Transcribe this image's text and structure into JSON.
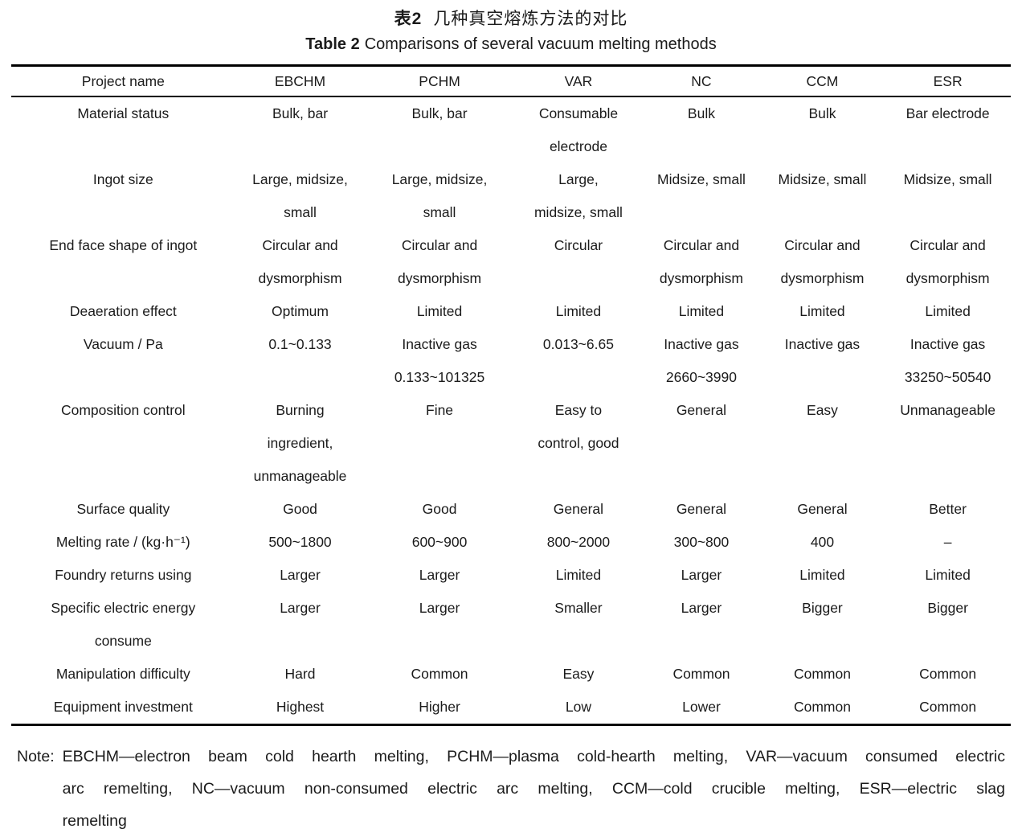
{
  "title": {
    "zh_label": "表2",
    "zh_text": "几种真空熔炼方法的对比",
    "en_label": "Table 2",
    "en_text": "Comparisons of several vacuum melting methods"
  },
  "table": {
    "columns": [
      "Project name",
      "EBCHM",
      "PCHM",
      "VAR",
      "NC",
      "CCM",
      "ESR"
    ],
    "rows": [
      {
        "label": "Material status",
        "cells": [
          "Bulk, bar",
          "Bulk, bar",
          "Consumable\nelectrode",
          "Bulk",
          "Bulk",
          "Bar electrode"
        ]
      },
      {
        "label": "Ingot size",
        "cells": [
          "Large, midsize,\nsmall",
          "Large, midsize,\nsmall",
          "Large,\nmidsize, small",
          "Midsize, small",
          "Midsize, small",
          "Midsize, small"
        ]
      },
      {
        "label": "End face shape of ingot",
        "cells": [
          "Circular and\ndysmorphism",
          "Circular and\ndysmorphism",
          "Circular",
          "Circular and\ndysmorphism",
          "Circular and\ndysmorphism",
          "Circular and\ndysmorphism"
        ]
      },
      {
        "label": "Deaeration effect",
        "cells": [
          "Optimum",
          "Limited",
          "Limited",
          "Limited",
          "Limited",
          "Limited"
        ]
      },
      {
        "label": "Vacuum / Pa",
        "cells": [
          "0.1~0.133",
          "Inactive gas\n0.133~101325",
          "0.013~6.65",
          "Inactive gas\n2660~3990",
          "Inactive gas",
          "Inactive gas\n33250~50540"
        ]
      },
      {
        "label": "Composition control",
        "cells": [
          "Burning\ningredient,\nunmanageable",
          "Fine",
          "Easy to\ncontrol, good",
          "General",
          "Easy",
          "Unmanageable"
        ]
      },
      {
        "label": "Surface quality",
        "cells": [
          "Good",
          "Good",
          "General",
          "General",
          "General",
          "Better"
        ]
      },
      {
        "label": "Melting rate / (kg·h⁻¹)",
        "cells": [
          "500~1800",
          "600~900",
          "800~2000",
          "300~800",
          "400",
          "–"
        ]
      },
      {
        "label": "Foundry returns using",
        "cells": [
          "Larger",
          "Larger",
          "Limited",
          "Larger",
          "Limited",
          "Limited"
        ]
      },
      {
        "label": "Specific electric energy\nconsume",
        "cells": [
          "Larger",
          "Larger",
          "Smaller",
          "Larger",
          "Bigger",
          "Bigger"
        ]
      },
      {
        "label": "Manipulation difficulty",
        "cells": [
          "Hard",
          "Common",
          "Easy",
          "Common",
          "Common",
          "Common"
        ]
      },
      {
        "label": "Equipment investment",
        "cells": [
          "Highest",
          "Higher",
          "Low",
          "Lower",
          "Common",
          "Common"
        ]
      }
    ]
  },
  "note": {
    "label": "Note:",
    "lines": [
      "EBCHM—electron beam cold hearth melting, PCHM—plasma cold-hearth melting, VAR—vacuum consumed electric",
      "arc remelting, NC—vacuum non-consumed electric arc melting, CCM—cold crucible melting, ESR—electric slag",
      "remelting"
    ]
  }
}
